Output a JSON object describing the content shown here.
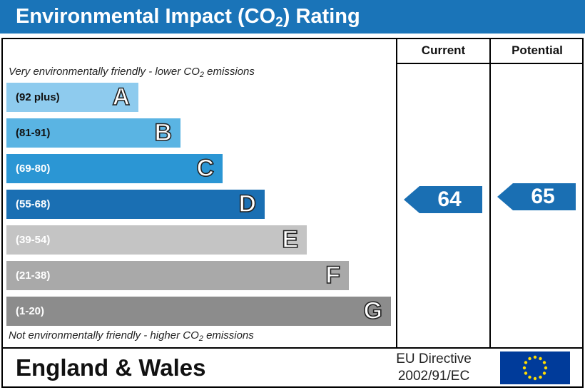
{
  "title": {
    "main": "Environmental Impact (CO",
    "sub": "2",
    "rest": ") Rating"
  },
  "columns": {
    "current": "Current",
    "potential": "Potential"
  },
  "top_caption": {
    "pre": "Very environmentally friendly - lower CO",
    "sub": "2",
    "post": " emissions"
  },
  "bottom_caption": {
    "pre": "Not environmentally friendly - higher CO",
    "sub": "2",
    "post": " emissions"
  },
  "footer": {
    "region": "England & Wales",
    "directive_line1": "EU Directive",
    "directive_line2": "2002/91/EC"
  },
  "chart_data": {
    "type": "bar",
    "categories": [
      "A",
      "B",
      "C",
      "D",
      "E",
      "F",
      "G"
    ],
    "ranges": [
      "(92 plus)",
      "(81-91)",
      "(69-80)",
      "(55-68)",
      "(39-54)",
      "(21-38)",
      "(1-20)"
    ],
    "colors": [
      "#8ecbee",
      "#5ab4e3",
      "#2b96d4",
      "#1a6fb3",
      "#c4c4c4",
      "#a9a9a9",
      "#8c8c8c"
    ],
    "range_text_colors": [
      "#111111",
      "#111111",
      "#ffffff",
      "#ffffff",
      "#ffffff",
      "#ffffff",
      "#ffffff"
    ],
    "current": {
      "value": 64,
      "band": "D"
    },
    "potential": {
      "value": 65,
      "band": "D"
    },
    "arrow_color": "#1a6fb3"
  }
}
